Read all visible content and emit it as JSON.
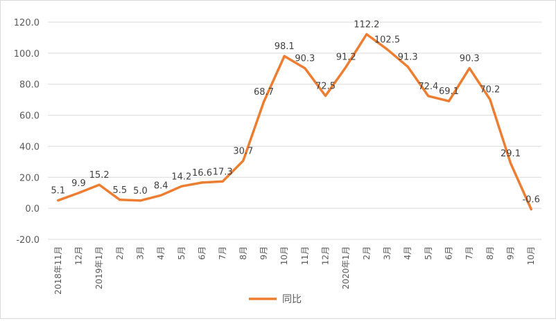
{
  "chart_data": {
    "type": "line",
    "title": "",
    "xlabel": "",
    "ylabel": "",
    "ylim": [
      -20,
      120
    ],
    "yticks": [
      "-20.0",
      "0.0",
      "20.0",
      "40.0",
      "60.0",
      "80.0",
      "100.0",
      "120.0"
    ],
    "grid": true,
    "legend_position": "bottom",
    "categories": [
      "2018年11月",
      "12月",
      "2019年1月",
      "2月",
      "3月",
      "4月",
      "5月",
      "6月",
      "7月",
      "8月",
      "9月",
      "10月",
      "11月",
      "12月",
      "2020年1月",
      "2月",
      "3月",
      "4月",
      "5月",
      "6月",
      "7月",
      "8月",
      "9月",
      "10月"
    ],
    "series": [
      {
        "name": "同比",
        "color": "#ED7D31",
        "values": [
          5.1,
          9.9,
          15.2,
          5.5,
          5.0,
          8.4,
          14.2,
          16.6,
          17.3,
          30.7,
          68.7,
          98.1,
          90.3,
          72.5,
          91.2,
          112.2,
          102.5,
          91.3,
          72.4,
          69.1,
          90.3,
          70.2,
          29.1,
          -0.6
        ]
      }
    ]
  }
}
